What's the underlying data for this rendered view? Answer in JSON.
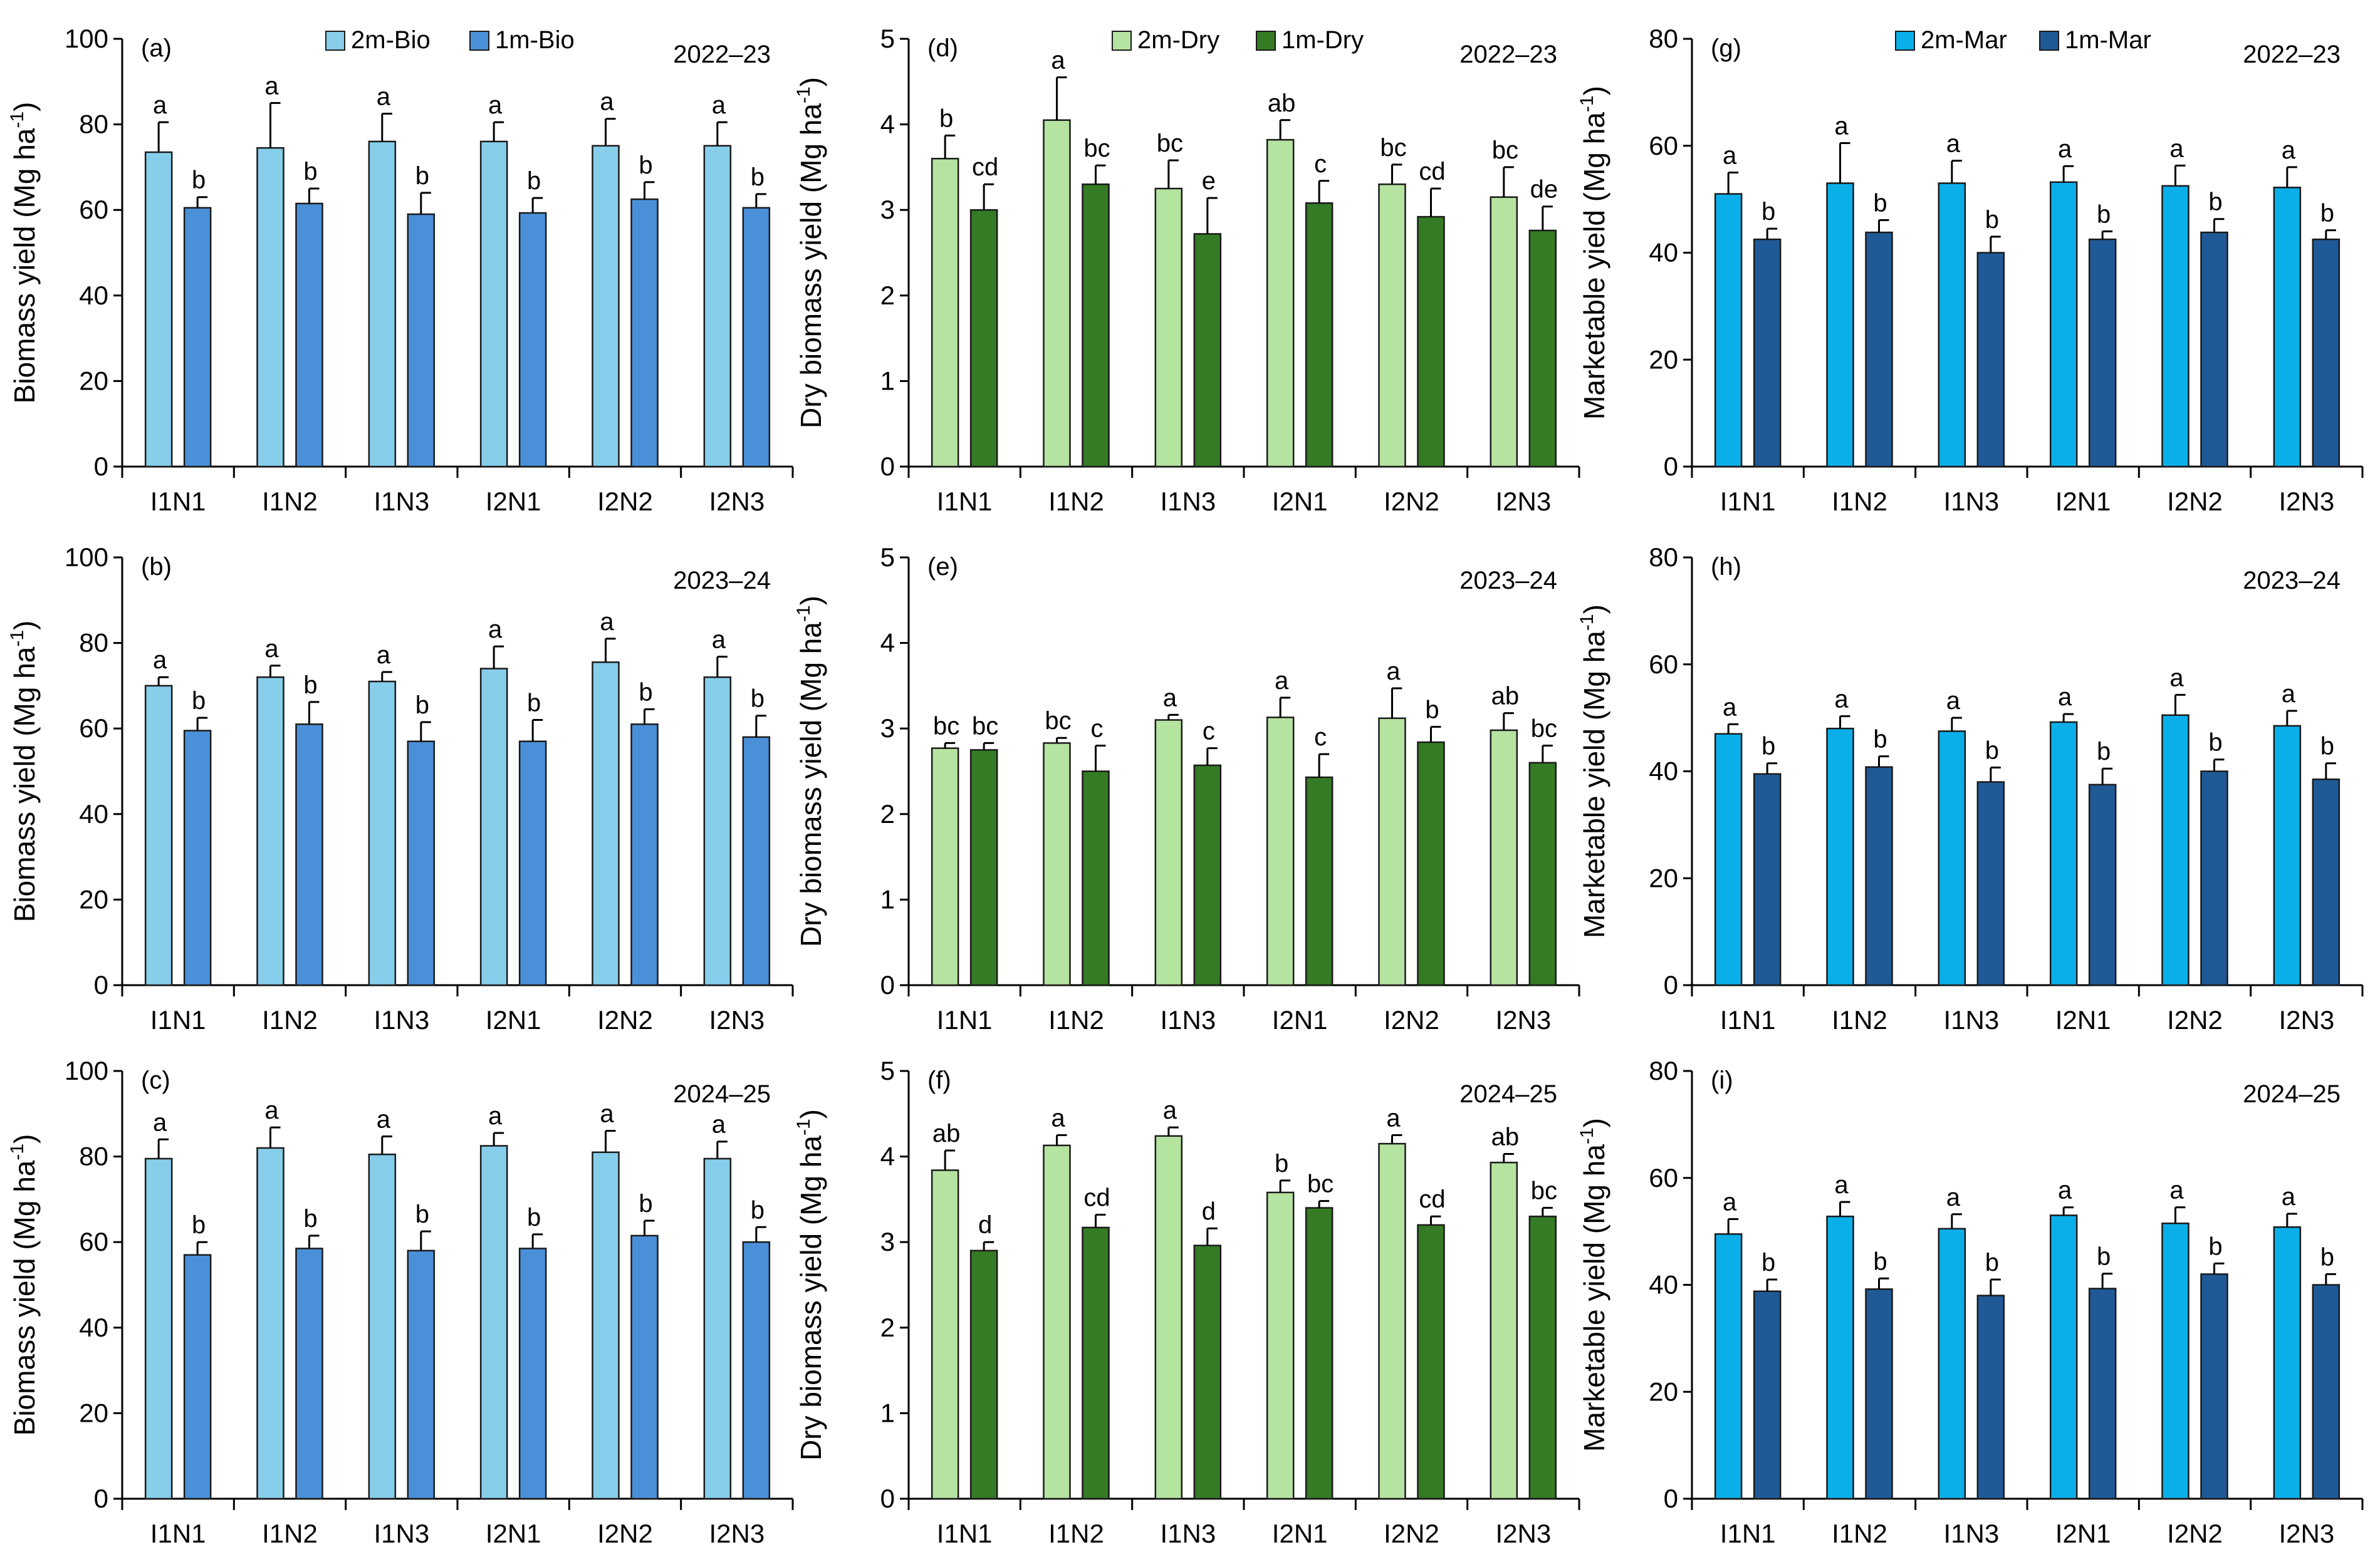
{
  "figure": {
    "categories": [
      "I1N1",
      "I1N2",
      "I1N3",
      "I2N1",
      "I2N2",
      "I2N3"
    ],
    "colors": {
      "bio_2m": "#87CEEB",
      "bio_1m": "#4A90D9",
      "dry_2m": "#B5E3A0",
      "dry_1m": "#357A25",
      "mar_2m": "#0AAFEA",
      "mar_1m": "#1F5A96",
      "axis": "#000000",
      "error": "#000000"
    }
  },
  "chart_data": [
    {
      "id": "a",
      "panel_label": "(a)",
      "year": "2022–23",
      "type": "bar",
      "ylabel_main": "Biomass yield (Mg ha",
      "ylabel_sup": "-1",
      "ylabel_end": ")",
      "ylim": [
        0,
        100
      ],
      "yticks": [
        "0",
        "20",
        "40",
        "60",
        "80",
        "100"
      ],
      "categories": [
        "I1N1",
        "I1N2",
        "I1N3",
        "I2N1",
        "I2N2",
        "I2N3"
      ],
      "show_legend": true,
      "series": [
        {
          "name": "2m-Bio",
          "color_key": "bio_2m",
          "values": [
            73.5,
            74.5,
            76,
            76,
            75,
            75
          ],
          "errors": [
            7,
            10.5,
            6.5,
            4.5,
            6.3,
            5.5
          ],
          "letters": [
            "a",
            "a",
            "a",
            "a",
            "a",
            "a"
          ]
        },
        {
          "name": "1m-Bio",
          "color_key": "bio_1m",
          "values": [
            60.5,
            61.5,
            59,
            59.3,
            62.5,
            60.5
          ],
          "errors": [
            2.5,
            3.5,
            5,
            3.5,
            4,
            3.2
          ],
          "letters": [
            "b",
            "b",
            "b",
            "b",
            "b",
            "b"
          ]
        }
      ]
    },
    {
      "id": "d",
      "panel_label": "(d)",
      "year": "2022–23",
      "type": "bar",
      "ylabel_main": "Dry biomass yield (Mg ha",
      "ylabel_sup": "-1",
      "ylabel_end": ")",
      "ylim": [
        0,
        5
      ],
      "yticks": [
        "0",
        "1",
        "2",
        "3",
        "4",
        "5"
      ],
      "categories": [
        "I1N1",
        "I1N2",
        "I1N3",
        "I2N1",
        "I2N2",
        "I2N3"
      ],
      "show_legend": true,
      "series": [
        {
          "name": "2m-Dry",
          "color_key": "dry_2m",
          "values": [
            3.6,
            4.05,
            3.25,
            3.82,
            3.3,
            3.15
          ],
          "errors": [
            0.27,
            0.5,
            0.33,
            0.23,
            0.23,
            0.35
          ],
          "letters": [
            "b",
            "a",
            "bc",
            "ab",
            "bc",
            "bc"
          ]
        },
        {
          "name": "1m-Dry",
          "color_key": "dry_1m",
          "values": [
            3.0,
            3.3,
            2.72,
            3.08,
            2.92,
            2.76
          ],
          "errors": [
            0.3,
            0.22,
            0.42,
            0.26,
            0.33,
            0.28
          ],
          "letters": [
            "cd",
            "bc",
            "e",
            "c",
            "cd",
            "de"
          ]
        }
      ]
    },
    {
      "id": "g",
      "panel_label": "(g)",
      "year": "2022–23",
      "type": "bar",
      "ylabel_main": "Marketable yield (Mg ha",
      "ylabel_sup": "-1",
      "ylabel_end": ")",
      "ylim": [
        0,
        80
      ],
      "yticks": [
        "0",
        "20",
        "40",
        "60",
        "80"
      ],
      "categories": [
        "I1N1",
        "I1N2",
        "I1N3",
        "I2N1",
        "I2N2",
        "I2N3"
      ],
      "show_legend": true,
      "series": [
        {
          "name": "2m-Mar",
          "color_key": "mar_2m",
          "values": [
            51,
            53,
            53,
            53.2,
            52.5,
            52.2
          ],
          "errors": [
            4,
            7.5,
            4.2,
            3,
            3.8,
            3.8
          ],
          "letters": [
            "a",
            "a",
            "a",
            "a",
            "a",
            "a"
          ]
        },
        {
          "name": "1m-Mar",
          "color_key": "mar_1m",
          "values": [
            42.5,
            43.8,
            40,
            42.5,
            43.8,
            42.5
          ],
          "errors": [
            2,
            2.3,
            3,
            1.5,
            2.5,
            1.7
          ],
          "letters": [
            "b",
            "b",
            "b",
            "b",
            "b",
            "b"
          ]
        }
      ]
    },
    {
      "id": "b",
      "panel_label": "(b)",
      "year": "2023–24",
      "type": "bar",
      "ylabel_main": "Biomass yield (Mg ha",
      "ylabel_sup": "-1",
      "ylabel_end": ")",
      "ylim": [
        0,
        100
      ],
      "yticks": [
        "0",
        "20",
        "40",
        "60",
        "80",
        "100"
      ],
      "categories": [
        "I1N1",
        "I1N2",
        "I1N3",
        "I2N1",
        "I2N2",
        "I2N3"
      ],
      "show_legend": false,
      "series": [
        {
          "name": "2m-Bio",
          "color_key": "bio_2m",
          "values": [
            70,
            72,
            71,
            74,
            75.5,
            72
          ],
          "errors": [
            2,
            2.7,
            2.2,
            5.2,
            5.5,
            4.8
          ],
          "letters": [
            "a",
            "a",
            "a",
            "a",
            "a",
            "a"
          ]
        },
        {
          "name": "1m-Bio",
          "color_key": "bio_1m",
          "values": [
            59.5,
            61,
            57,
            57,
            61,
            58
          ],
          "errors": [
            3,
            5.2,
            4.5,
            5,
            3.5,
            5
          ],
          "letters": [
            "b",
            "b",
            "b",
            "b",
            "b",
            "b"
          ]
        }
      ]
    },
    {
      "id": "e",
      "panel_label": "(e)",
      "year": "2023–24",
      "type": "bar",
      "ylabel_main": "Dry biomass yield (Mg ha",
      "ylabel_sup": "-1",
      "ylabel_end": ")",
      "ylim": [
        0,
        5
      ],
      "yticks": [
        "0",
        "1",
        "2",
        "3",
        "4",
        "5"
      ],
      "categories": [
        "I1N1",
        "I1N2",
        "I1N3",
        "I2N1",
        "I2N2",
        "I2N3"
      ],
      "show_legend": false,
      "series": [
        {
          "name": "2m-Dry",
          "color_key": "dry_2m",
          "values": [
            2.77,
            2.83,
            3.1,
            3.13,
            3.12,
            2.98
          ],
          "errors": [
            0.06,
            0.06,
            0.06,
            0.23,
            0.35,
            0.2
          ],
          "letters": [
            "bc",
            "bc",
            "a",
            "a",
            "a",
            "ab"
          ]
        },
        {
          "name": "1m-Dry",
          "color_key": "dry_1m",
          "values": [
            2.75,
            2.5,
            2.57,
            2.43,
            2.84,
            2.6
          ],
          "errors": [
            0.08,
            0.3,
            0.2,
            0.27,
            0.18,
            0.2
          ],
          "letters": [
            "bc",
            "c",
            "c",
            "c",
            "b",
            "bc"
          ]
        }
      ]
    },
    {
      "id": "h",
      "panel_label": "(h)",
      "year": "2023–24",
      "type": "bar",
      "ylabel_main": "Marketable yield (Mg ha",
      "ylabel_sup": "-1",
      "ylabel_end": ")",
      "ylim": [
        0,
        80
      ],
      "yticks": [
        "0",
        "20",
        "40",
        "60",
        "80"
      ],
      "categories": [
        "I1N1",
        "I1N2",
        "I1N3",
        "I2N1",
        "I2N2",
        "I2N3"
      ],
      "show_legend": false,
      "series": [
        {
          "name": "2m-Mar",
          "color_key": "mar_2m",
          "values": [
            47,
            48,
            47.5,
            49.2,
            50.5,
            48.5
          ],
          "errors": [
            1.8,
            2.3,
            2.5,
            1.5,
            3.8,
            2.8
          ],
          "letters": [
            "a",
            "a",
            "a",
            "a",
            "a",
            "a"
          ]
        },
        {
          "name": "1m-Mar",
          "color_key": "mar_1m",
          "values": [
            39.5,
            40.8,
            38,
            37.5,
            40,
            38.5
          ],
          "errors": [
            2,
            2,
            2.7,
            3,
            2.2,
            3
          ],
          "letters": [
            "b",
            "b",
            "b",
            "b",
            "b",
            "b"
          ]
        }
      ]
    },
    {
      "id": "c",
      "panel_label": "(c)",
      "year": "2024–25",
      "type": "bar",
      "ylabel_main": "Biomass yield (Mg ha",
      "ylabel_sup": "-1",
      "ylabel_end": ")",
      "ylim": [
        0,
        100
      ],
      "yticks": [
        "0",
        "20",
        "40",
        "60",
        "80",
        "100"
      ],
      "categories": [
        "I1N1",
        "I1N2",
        "I1N3",
        "I2N1",
        "I2N2",
        "I2N3"
      ],
      "show_legend": false,
      "series": [
        {
          "name": "2m-Bio",
          "color_key": "bio_2m",
          "values": [
            79.5,
            82,
            80.5,
            82.5,
            81,
            79.5
          ],
          "errors": [
            4.5,
            4.8,
            4.2,
            3,
            5,
            4
          ],
          "letters": [
            "a",
            "a",
            "a",
            "a",
            "a",
            "a"
          ]
        },
        {
          "name": "1m-Bio",
          "color_key": "bio_1m",
          "values": [
            57,
            58.5,
            58,
            58.5,
            61.5,
            60
          ],
          "errors": [
            3,
            3,
            4.5,
            3.3,
            3.5,
            3.5
          ],
          "letters": [
            "b",
            "b",
            "b",
            "b",
            "b",
            "b"
          ]
        }
      ]
    },
    {
      "id": "f",
      "panel_label": "(f)",
      "year": "2024–25",
      "type": "bar",
      "ylabel_main": "Dry biomass yield (Mg ha",
      "ylabel_sup": "-1",
      "ylabel_end": ")",
      "ylim": [
        0,
        5
      ],
      "yticks": [
        "0",
        "1",
        "2",
        "3",
        "4",
        "5"
      ],
      "categories": [
        "I1N1",
        "I1N2",
        "I1N3",
        "I2N1",
        "I2N2",
        "I2N3"
      ],
      "show_legend": false,
      "series": [
        {
          "name": "2m-Dry",
          "color_key": "dry_2m",
          "values": [
            3.84,
            4.13,
            4.24,
            3.58,
            4.15,
            3.93
          ],
          "errors": [
            0.23,
            0.12,
            0.1,
            0.14,
            0.1,
            0.1
          ],
          "letters": [
            "ab",
            "a",
            "a",
            "b",
            "a",
            "ab"
          ]
        },
        {
          "name": "1m-Dry",
          "color_key": "dry_1m",
          "values": [
            2.9,
            3.17,
            2.96,
            3.4,
            3.2,
            3.3
          ],
          "errors": [
            0.1,
            0.15,
            0.2,
            0.08,
            0.1,
            0.1
          ],
          "letters": [
            "d",
            "cd",
            "d",
            "bc",
            "cd",
            "bc"
          ]
        }
      ]
    },
    {
      "id": "i",
      "panel_label": "(i)",
      "year": "2024–25",
      "type": "bar",
      "ylabel_main": "Marketable yield (Mg ha",
      "ylabel_sup": "-1",
      "ylabel_end": ")",
      "ylim": [
        0,
        80
      ],
      "yticks": [
        "0",
        "20",
        "40",
        "60",
        "80"
      ],
      "categories": [
        "I1N1",
        "I1N2",
        "I1N3",
        "I2N1",
        "I2N2",
        "I2N3"
      ],
      "show_legend": false,
      "series": [
        {
          "name": "2m-Mar",
          "color_key": "mar_2m",
          "values": [
            49.5,
            52.8,
            50.5,
            53,
            51.5,
            50.8
          ],
          "errors": [
            2.8,
            2.7,
            2.7,
            1.5,
            3,
            2.5
          ],
          "letters": [
            "a",
            "a",
            "a",
            "a",
            "a",
            "a"
          ]
        },
        {
          "name": "1m-Mar",
          "color_key": "mar_1m",
          "values": [
            38.8,
            39.2,
            38,
            39.3,
            42,
            40
          ],
          "errors": [
            2.2,
            2,
            3,
            2.8,
            2,
            2
          ],
          "letters": [
            "b",
            "b",
            "b",
            "b",
            "b",
            "b"
          ]
        }
      ]
    }
  ]
}
